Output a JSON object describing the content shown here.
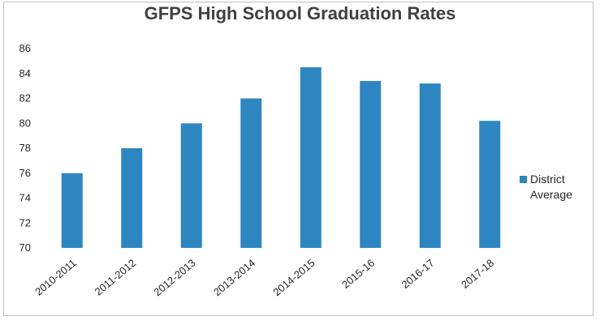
{
  "chart_data": {
    "type": "bar",
    "title": "GFPS High School Graduation Rates",
    "categories": [
      "2010-2011",
      "2011-2012",
      "2012-2013",
      "2013-2014",
      "2014-2015",
      "2015-16",
      "2016-17",
      "2017-18"
    ],
    "series": [
      {
        "name": "District Average",
        "values": [
          76,
          78,
          80,
          82,
          84.5,
          83.4,
          83.2,
          80.2
        ]
      }
    ],
    "yticks": [
      "70",
      "72",
      "74",
      "76",
      "78",
      "80",
      "82",
      "84",
      "86"
    ],
    "ylim": [
      70,
      86
    ],
    "xlabel": "",
    "ylabel": "",
    "grid": false,
    "legend_position": "right",
    "bar_color": "#2e86c1"
  }
}
